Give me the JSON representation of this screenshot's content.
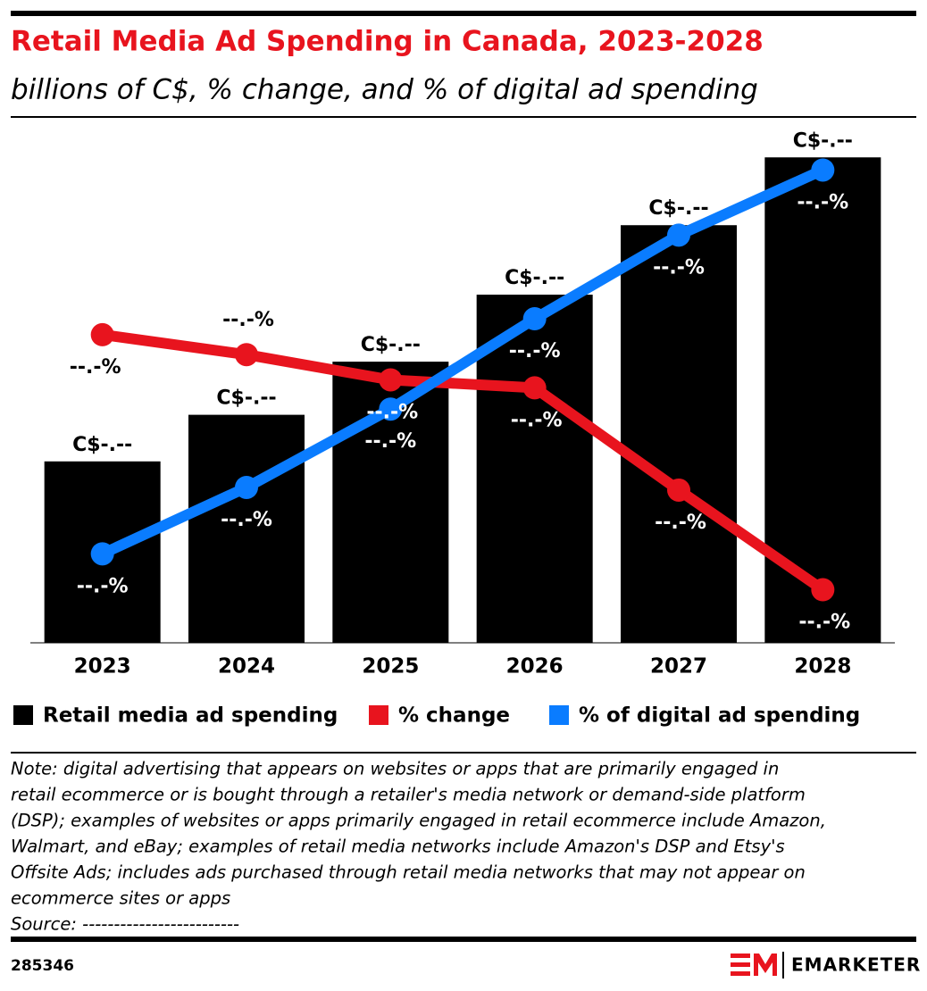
{
  "chart_data": {
    "type": "bar",
    "title": "Retail Media Ad Spending in Canada, 2023-2028",
    "subtitle": "billions of C$, % change, and % of digital ad spending",
    "categories": [
      "2023",
      "2024",
      "2025",
      "2026",
      "2027",
      "2028"
    ],
    "ylim": [
      0,
      6.5
    ],
    "y2lim": [
      0,
      40
    ],
    "series": [
      {
        "name": "Retail media ad spending",
        "type": "bar",
        "color": "#000000",
        "values": [
          2.22,
          2.79,
          3.44,
          4.26,
          5.11,
          5.94
        ],
        "value_labels": [
          "C$-.--",
          "C$-.--",
          "C$-.--",
          "C$-.--",
          "C$-.--",
          "C$-.--"
        ]
      },
      {
        "name": "% change",
        "type": "line",
        "axis": "y2",
        "color": "#e8141e",
        "values": [
          23.2,
          21.7,
          19.8,
          19.2,
          11.5,
          4.0
        ],
        "value_labels": [
          "--.-%",
          "--.-%",
          "--.-%",
          "--.-%",
          "--.-%",
          "--.-%"
        ]
      },
      {
        "name": "% of digital ad spending",
        "type": "line",
        "axis": "y2",
        "color": "#0a7cff",
        "values": [
          6.7,
          11.7,
          17.6,
          24.4,
          30.7,
          35.6
        ],
        "value_labels": [
          "--.-%",
          "--.-%",
          "--.-%",
          "--.-%",
          "--.-%",
          "--.-%"
        ]
      }
    ]
  },
  "note": [
    "Note: digital advertising that appears on websites or apps that are primarily engaged in",
    "retail ecommerce or is bought through a retailer's media network or demand-side platform",
    "(DSP); examples of websites or apps primarily engaged in retail ecommerce include Amazon,",
    "Walmart, and eBay; examples of retail media networks include Amazon's DSP and Etsy's",
    "Offsite Ads; includes ads purchased through retail media networks that may not appear on",
    "ecommerce sites or apps",
    "Source: -------------------------"
  ],
  "footer": {
    "id": "285346",
    "brand": "EMARKETER"
  }
}
